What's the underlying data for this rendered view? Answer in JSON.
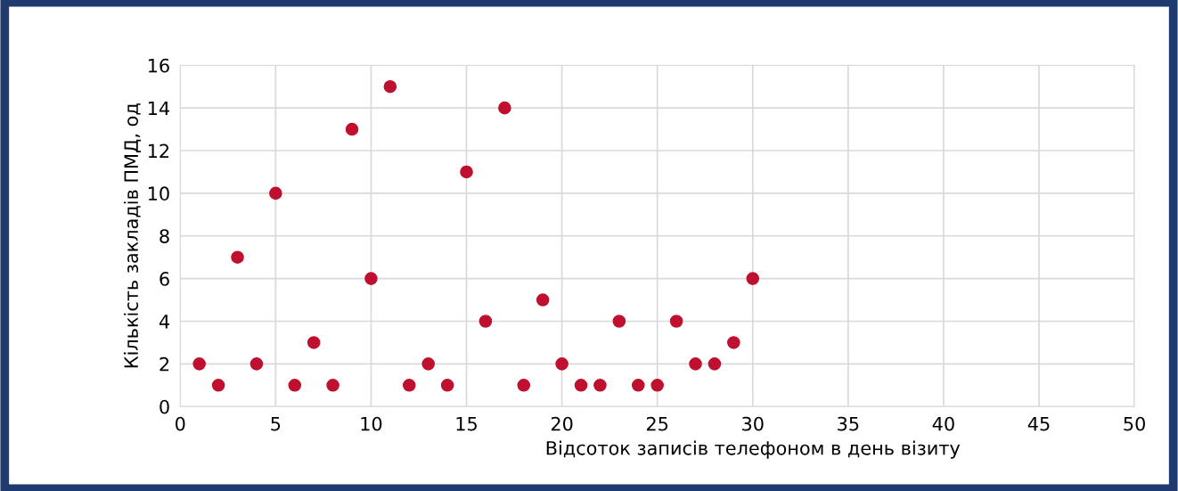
{
  "chart_data": {
    "type": "scatter",
    "xlabel": "Відсоток записів телефоном в день візиту",
    "ylabel": "Кількість закладів ПМД, од",
    "x": [
      1,
      2,
      3,
      4,
      5,
      6,
      7,
      8,
      9,
      10,
      11,
      12,
      13,
      14,
      15,
      16,
      17,
      18,
      19,
      20,
      21,
      22,
      23,
      24,
      25,
      26,
      27,
      28,
      29,
      30
    ],
    "series": [
      {
        "color": "#c0102f",
        "values": [
          2,
          1,
          7,
          2,
          10,
          1,
          3,
          1,
          13,
          6,
          15,
          1,
          2,
          1,
          11,
          4,
          14,
          1,
          5,
          2,
          1,
          1,
          4,
          1,
          1,
          4,
          2,
          2,
          3,
          6
        ]
      }
    ],
    "xlim": [
      0,
      50
    ],
    "xticks": [
      0,
      5,
      10,
      15,
      20,
      25,
      30,
      35,
      40,
      45,
      50
    ],
    "ylim": [
      0,
      16
    ],
    "yticks": [
      0,
      2,
      4,
      6,
      8,
      10,
      12,
      14,
      16
    ],
    "grid": true,
    "marker": "circle",
    "legend": false
  }
}
